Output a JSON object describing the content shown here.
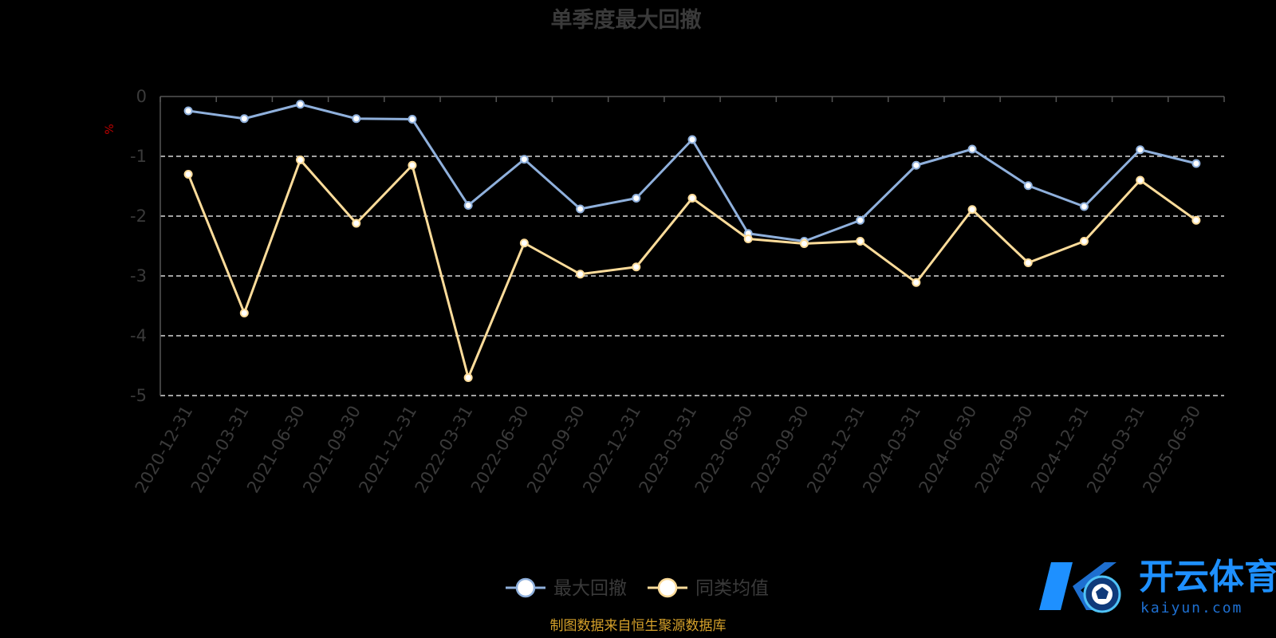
{
  "chart_data": {
    "type": "line",
    "title": "单季度最大回撤",
    "ylabel": "%",
    "ylim": [
      -5,
      0
    ],
    "yticks": [
      "0",
      "-1",
      "-2",
      "-3",
      "-4",
      "-5"
    ],
    "grid": true,
    "legend_position": "bottom",
    "categories": [
      "2020-12-31",
      "2021-03-31",
      "2021-06-30",
      "2021-09-30",
      "2021-12-31",
      "2022-03-31",
      "2022-06-30",
      "2022-09-30",
      "2022-12-31",
      "2023-03-31",
      "2023-06-30",
      "2023-09-30",
      "2023-12-31",
      "2024-03-31",
      "2024-06-30",
      "2024-09-30",
      "2024-12-31",
      "2025-03-31",
      "2025-06-30"
    ],
    "series": [
      {
        "name": "最大回撤",
        "color": "#8fb0dc",
        "values": [
          -0.24,
          -0.37,
          -0.13,
          -0.37,
          -0.38,
          -1.82,
          -1.05,
          -1.88,
          -1.7,
          -0.72,
          -2.29,
          -2.42,
          -2.07,
          -1.15,
          -0.88,
          -1.49,
          -1.84,
          -0.89,
          -1.12
        ]
      },
      {
        "name": "同类均值",
        "color": "#fddc9a",
        "values": [
          -1.3,
          -3.62,
          -1.06,
          -2.12,
          -1.15,
          -4.7,
          -2.45,
          -2.97,
          -2.85,
          -1.7,
          -2.38,
          -2.46,
          -2.42,
          -3.11,
          -1.89,
          -2.78,
          -2.42,
          -1.4,
          -2.07
        ]
      }
    ]
  },
  "footer": "制图数据来自恒生聚源数据库",
  "watermark": {
    "brand": "开云体育",
    "domain": "kaiyun.com"
  }
}
